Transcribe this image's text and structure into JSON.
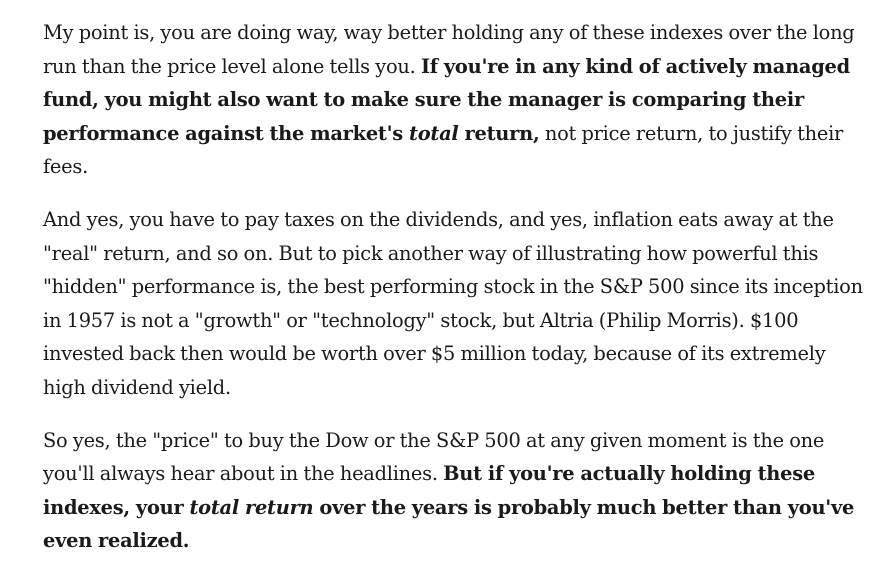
{
  "paragraphs": [
    {
      "segments": [
        {
          "style": "normal",
          "text": "My point is, you are doing way, way better holding any of these indexes over the long run than the price level alone tells you. "
        },
        {
          "style": "bold",
          "text": "If you're in any kind of actively managed fund, you might also want to make sure the manager is comparing their performance against the market's "
        },
        {
          "style": "bold-italic",
          "text": "total"
        },
        {
          "style": "bold",
          "text": " return,"
        },
        {
          "style": "normal",
          "text": " not price return, to justify their fees."
        }
      ]
    },
    {
      "segments": [
        {
          "style": "normal",
          "text": "And yes, you have to pay taxes on the dividends, and yes, inflation eats away at the \"real\" return, and so on. But to pick another way of illustrating how powerful this \"hidden\" performance is, the best performing stock in the S&P 500 since its inception in 1957 is not a \"growth\" or \"technology\" stock, but Altria (Philip Morris). $100 invested back then would be worth over $5 million today, because of its extremely high dividend yield."
        }
      ]
    },
    {
      "segments": [
        {
          "style": "normal",
          "text": "So yes, the \"price\" to buy the Dow or the S&P 500 at any given moment is the one you'll always hear about in the headlines. "
        },
        {
          "style": "bold",
          "text": "But if you're actually holding these indexes, your "
        },
        {
          "style": "bold-italic",
          "text": "total return"
        },
        {
          "style": "bold",
          "text": " over the years is probably much better than you've even realized."
        }
      ]
    }
  ]
}
